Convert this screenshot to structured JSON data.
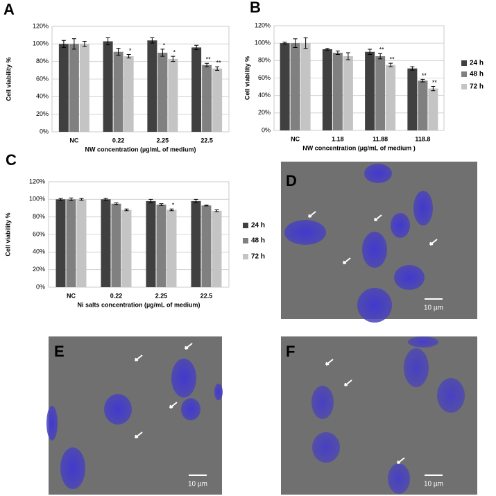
{
  "chart_data": [
    {
      "type": "bar",
      "panel_label": "A",
      "y_label": "Cell viability %",
      "x_label": "NW concentration (µg/mL of medium)",
      "categories": [
        "NC",
        "0.22",
        "2.25",
        "22.5"
      ],
      "ylim": [
        0,
        120
      ],
      "yticks": [
        {
          "value": 0,
          "label": "0%"
        },
        {
          "value": 20,
          "label": "20%"
        },
        {
          "value": 40,
          "label": "40%"
        },
        {
          "value": 60,
          "label": "60%"
        },
        {
          "value": 80,
          "label": "80%"
        },
        {
          "value": 100,
          "label": "100%"
        },
        {
          "value": 120,
          "label": "120%"
        }
      ],
      "grid": true,
      "series": [
        {
          "color": "#404040",
          "values": [
            100,
            103,
            104,
            96
          ],
          "errors": [
            4,
            4,
            3,
            2.5
          ],
          "significance": [
            null,
            null,
            null,
            null
          ]
        },
        {
          "color": "#808080",
          "values": [
            100,
            91,
            90,
            76
          ],
          "errors": [
            6,
            4,
            4,
            2
          ],
          "significance": [
            null,
            null,
            "*",
            "**"
          ]
        },
        {
          "color": "#c4c4c4",
          "values": [
            100,
            86,
            83,
            72
          ],
          "errors": [
            3,
            2,
            3,
            2
          ],
          "significance": [
            null,
            "*",
            "*",
            "**"
          ]
        }
      ]
    },
    {
      "type": "bar",
      "panel_label": "B",
      "y_label": "Cell viability %",
      "x_label": "NW concentration (µg/mL of medium )",
      "categories": [
        "NC",
        "1.18",
        "11.88",
        "118.8"
      ],
      "ylim": [
        0,
        120
      ],
      "yticks": [
        {
          "value": 0,
          "label": "0%"
        },
        {
          "value": 20,
          "label": "20%"
        },
        {
          "value": 40,
          "label": "40%"
        },
        {
          "value": 60,
          "label": "60%"
        },
        {
          "value": 80,
          "label": "80%"
        },
        {
          "value": 100,
          "label": "100%"
        },
        {
          "value": 120,
          "label": "120%"
        }
      ],
      "grid": true,
      "series": [
        {
          "name": "24 h",
          "color": "#404040",
          "values": [
            100,
            93,
            90,
            71
          ],
          "errors": [
            1,
            1,
            3,
            2
          ],
          "significance": [
            null,
            null,
            null,
            null
          ]
        },
        {
          "name": "48 h",
          "color": "#808080",
          "values": [
            100,
            89,
            85,
            57
          ],
          "errors": [
            5,
            2,
            3,
            1.5
          ],
          "significance": [
            null,
            null,
            "**",
            "**"
          ]
        },
        {
          "name": "72 h",
          "color": "#c4c4c4",
          "values": [
            100,
            85,
            75,
            48
          ],
          "errors": [
            6,
            4,
            2,
            2.5
          ],
          "significance": [
            null,
            null,
            "**",
            "**"
          ]
        }
      ]
    },
    {
      "type": "bar",
      "panel_label": "C",
      "y_label": "Cell viability %",
      "x_label": "Ni salts concentration (µg/mL of medium)",
      "categories": [
        "NC",
        "0.22",
        "2.25",
        "22.5"
      ],
      "ylim": [
        0,
        120
      ],
      "yticks": [
        {
          "value": 0,
          "label": "0%"
        },
        {
          "value": 20,
          "label": "20%"
        },
        {
          "value": 40,
          "label": "40%"
        },
        {
          "value": 60,
          "label": "60%"
        },
        {
          "value": 80,
          "label": "80%"
        },
        {
          "value": 100,
          "label": "100%"
        },
        {
          "value": 120,
          "label": "120%"
        }
      ],
      "grid": true,
      "series": [
        {
          "name": "24 h",
          "color": "#404040",
          "values": [
            100,
            100,
            98,
            98
          ],
          "errors": [
            1,
            1,
            2,
            2
          ],
          "significance": [
            null,
            null,
            null,
            null
          ]
        },
        {
          "name": "48 h",
          "color": "#808080",
          "values": [
            100,
            95,
            94,
            93
          ],
          "errors": [
            1.5,
            1,
            1,
            0.5
          ],
          "significance": [
            null,
            null,
            null,
            null
          ]
        },
        {
          "name": "72 h",
          "color": "#c4c4c4",
          "values": [
            100,
            88,
            88,
            87
          ],
          "errors": [
            1,
            1,
            1,
            1
          ],
          "significance": [
            null,
            null,
            "*",
            null
          ]
        }
      ]
    }
  ],
  "images": [
    {
      "label": "D",
      "scale_bar": "10 µm"
    },
    {
      "label": "E",
      "scale_bar": "10 µm"
    },
    {
      "label": "F",
      "scale_bar": "10 µm"
    }
  ]
}
